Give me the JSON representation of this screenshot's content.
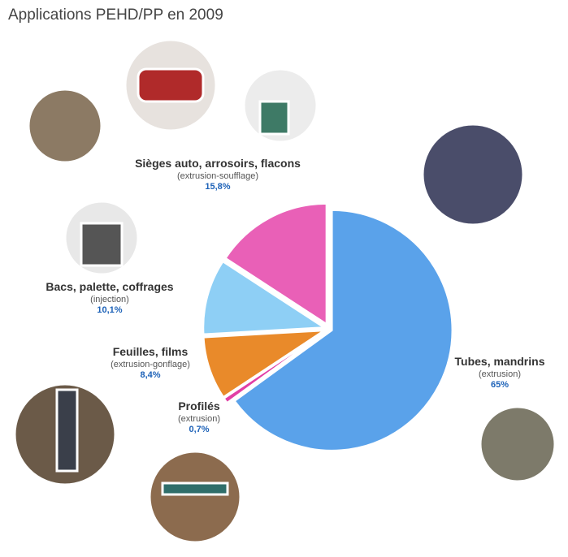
{
  "chart_data": {
    "type": "pie",
    "title": "Applications PEHD/PP en 2009",
    "categories": [
      "Tubes, mandrins",
      "Profilés",
      "Feuilles, films",
      "Bacs, palette, coffrages",
      "Sièges auto, arrosoirs, flacons"
    ],
    "processes": [
      "(extrusion)",
      "(extrusion)",
      "(extrusion-gonflage)",
      "(injection)",
      "(extrusion-soufflage)"
    ],
    "values": [
      65,
      0.7,
      8.4,
      10.1,
      15.8
    ],
    "value_labels": [
      "65%",
      "0,7%",
      "8,4%",
      "10,1%",
      "15,8%"
    ],
    "colors": [
      "#5aa2ea",
      "#e23fa5",
      "#e98a2a",
      "#8ecff5",
      "#e960b7"
    ]
  }
}
